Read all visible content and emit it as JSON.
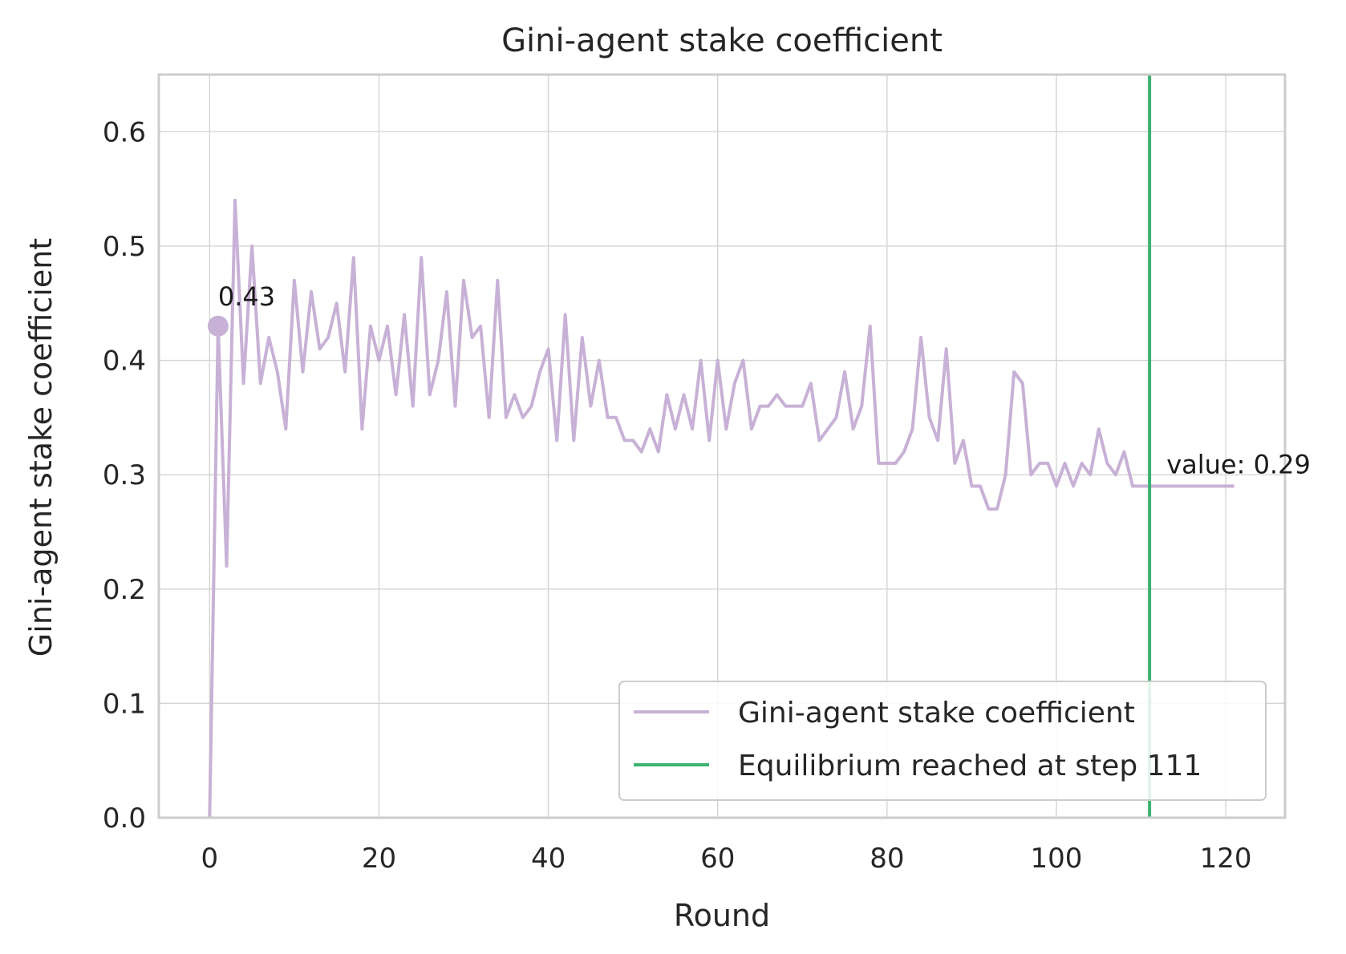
{
  "chart_data": {
    "type": "line",
    "title": "Gini-agent stake coefficient",
    "xlabel": "Round",
    "ylabel": "Gini-agent stake coefficient",
    "xlim": [
      -6,
      127
    ],
    "ylim": [
      0.0,
      0.65
    ],
    "xticks": [
      0,
      20,
      40,
      60,
      80,
      100,
      120
    ],
    "xtick_labels": [
      "0",
      "20",
      "40",
      "60",
      "80",
      "100",
      "120"
    ],
    "yticks": [
      0.0,
      0.1,
      0.2,
      0.3,
      0.4,
      0.5,
      0.6
    ],
    "ytick_labels": [
      "0.0",
      "0.1",
      "0.2",
      "0.3",
      "0.4",
      "0.5",
      "0.6"
    ],
    "grid": true,
    "legend_position": "lower-right",
    "series": [
      {
        "name": "Gini-agent stake coefficient",
        "color": "#c8b1d6",
        "x": [
          0,
          1,
          2,
          3,
          4,
          5,
          6,
          7,
          8,
          9,
          10,
          11,
          12,
          13,
          14,
          15,
          16,
          17,
          18,
          19,
          20,
          21,
          22,
          23,
          24,
          25,
          26,
          27,
          28,
          29,
          30,
          31,
          32,
          33,
          34,
          35,
          36,
          37,
          38,
          39,
          40,
          41,
          42,
          43,
          44,
          45,
          46,
          47,
          48,
          49,
          50,
          51,
          52,
          53,
          54,
          55,
          56,
          57,
          58,
          59,
          60,
          61,
          62,
          63,
          64,
          65,
          66,
          67,
          68,
          69,
          70,
          71,
          72,
          73,
          74,
          75,
          76,
          77,
          78,
          79,
          80,
          81,
          82,
          83,
          84,
          85,
          86,
          87,
          88,
          89,
          90,
          91,
          92,
          93,
          94,
          95,
          96,
          97,
          98,
          99,
          100,
          101,
          102,
          103,
          104,
          105,
          106,
          107,
          108,
          109,
          110,
          111,
          112,
          113,
          114,
          115,
          116,
          117,
          118,
          119,
          120,
          121
        ],
        "y": [
          0.0,
          0.43,
          0.22,
          0.54,
          0.38,
          0.5,
          0.38,
          0.42,
          0.39,
          0.34,
          0.47,
          0.39,
          0.46,
          0.41,
          0.42,
          0.45,
          0.39,
          0.49,
          0.34,
          0.43,
          0.4,
          0.43,
          0.37,
          0.44,
          0.36,
          0.49,
          0.37,
          0.4,
          0.46,
          0.36,
          0.47,
          0.42,
          0.43,
          0.35,
          0.47,
          0.35,
          0.37,
          0.35,
          0.36,
          0.39,
          0.41,
          0.33,
          0.44,
          0.33,
          0.42,
          0.36,
          0.4,
          0.35,
          0.35,
          0.33,
          0.33,
          0.32,
          0.34,
          0.32,
          0.37,
          0.34,
          0.37,
          0.34,
          0.4,
          0.33,
          0.4,
          0.34,
          0.38,
          0.4,
          0.34,
          0.36,
          0.36,
          0.37,
          0.36,
          0.36,
          0.36,
          0.38,
          0.33,
          0.34,
          0.35,
          0.39,
          0.34,
          0.36,
          0.43,
          0.31,
          0.31,
          0.31,
          0.32,
          0.34,
          0.42,
          0.35,
          0.33,
          0.41,
          0.31,
          0.33,
          0.29,
          0.29,
          0.27,
          0.27,
          0.3,
          0.39,
          0.38,
          0.3,
          0.31,
          0.31,
          0.29,
          0.31,
          0.29,
          0.31,
          0.3,
          0.34,
          0.31,
          0.3,
          0.32,
          0.29,
          0.29,
          0.29,
          0.29,
          0.29,
          0.29,
          0.29,
          0.29,
          0.29,
          0.29,
          0.29,
          0.29,
          0.29
        ]
      }
    ],
    "vline": {
      "name": "Equilibrium reached at step 111",
      "x": 111,
      "color": "#3cb371"
    },
    "start_marker": {
      "x": 1,
      "y": 0.43,
      "label": "0.43"
    },
    "end_annotation": {
      "x": 113,
      "y": 0.29,
      "label": "value: 0.29"
    }
  }
}
